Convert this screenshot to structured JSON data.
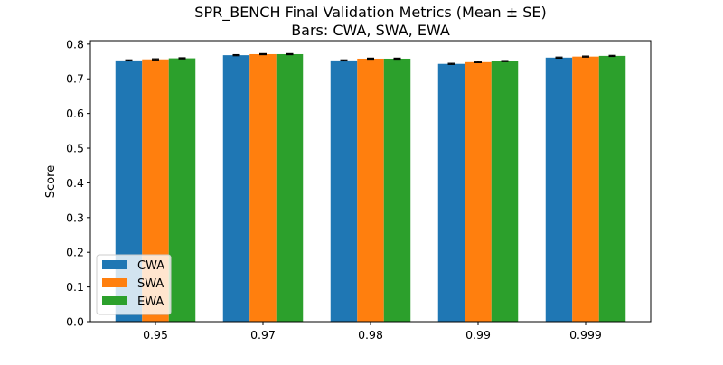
{
  "chart_data": {
    "type": "bar",
    "title": "SPR_BENCH Final Validation Metrics  (Mean ± SE)",
    "subtitle": "Bars: CWA, SWA, EWA",
    "xlabel": "",
    "ylabel": "Score",
    "categories": [
      "0.95",
      "0.97",
      "0.98",
      "0.99",
      "0.999"
    ],
    "series": [
      {
        "name": "CWA",
        "color": "#1f77b4",
        "values": [
          0.753,
          0.768,
          0.753,
          0.743,
          0.761
        ],
        "errors": [
          0.0015,
          0.0015,
          0.0015,
          0.0015,
          0.0015
        ]
      },
      {
        "name": "SWA",
        "color": "#ff7f0e",
        "values": [
          0.756,
          0.771,
          0.758,
          0.748,
          0.764
        ],
        "errors": [
          0.0015,
          0.0015,
          0.0015,
          0.0015,
          0.0015
        ]
      },
      {
        "name": "EWA",
        "color": "#2ca02c",
        "values": [
          0.759,
          0.771,
          0.758,
          0.751,
          0.766
        ],
        "errors": [
          0.0015,
          0.0015,
          0.0015,
          0.0015,
          0.0015
        ]
      }
    ],
    "ylim": [
      0,
      0.81
    ],
    "yticks": [
      "0.0",
      "0.1",
      "0.2",
      "0.3",
      "0.4",
      "0.5",
      "0.6",
      "0.7",
      "0.8"
    ],
    "grid": false,
    "legend_position": "lower-left"
  }
}
